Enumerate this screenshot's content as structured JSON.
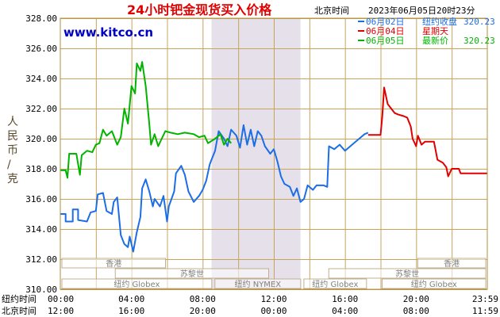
{
  "colors": {
    "border": "#b08c3c",
    "grid": "#c8a45a",
    "shade": "#e6e0ea",
    "title": "#e00000",
    "site": "#0000c0",
    "blue_series": "#1c6ee6",
    "red_series": "#e00000",
    "green_series": "#00b400"
  },
  "chart_data": {
    "type": "line",
    "title": "24小时钯金现货买入价格",
    "location": "北京时间",
    "timestamp": "2023年06月05日20时23分",
    "site": "www.kitco.cn",
    "ylabel": "人民币/克",
    "ylim": [
      310,
      328
    ],
    "y_ticks": [
      "310.00",
      "312.00",
      "314.00",
      "316.00",
      "318.00",
      "320.00",
      "322.00",
      "324.00",
      "326.00",
      "328.00"
    ],
    "xlim": [
      0,
      24
    ],
    "x_rows": [
      {
        "name": "纽约时间",
        "ticks": [
          "00:00",
          "04:00",
          "08:00",
          "12:00",
          "16:00",
          "20:00",
          "23:59"
        ]
      },
      {
        "name": "北京时间",
        "ticks": [
          "12:00",
          "16:00",
          "20:00",
          "00:00",
          "04:00",
          "08:00",
          "11:59"
        ]
      }
    ],
    "shaded_hours": [
      8.5,
      13.5
    ],
    "legend": [
      {
        "date": "06月02日",
        "label": "纽约收盘",
        "value": "320.23",
        "color": "#1c6ee6"
      },
      {
        "date": "06月04日",
        "label": "星期天",
        "value": "",
        "color": "#e00000"
      },
      {
        "date": "06月05日",
        "label": "最新价",
        "value": "320.23",
        "color": "#00b400"
      }
    ],
    "sessions": [
      {
        "label": "香港",
        "row": 0,
        "start": 0,
        "end": 6
      },
      {
        "label": "苏黎世",
        "row": 1,
        "start": 3,
        "end": 11.8
      },
      {
        "label": "纽约 Globex",
        "row": 2,
        "start": 0,
        "end": 8.6
      },
      {
        "label": "纽约 NYMEX",
        "row": 2,
        "start": 8.6,
        "end": 13.6
      },
      {
        "label": "纽约 Globex",
        "row": 2,
        "start": 13.6,
        "end": 17.3
      },
      {
        "label": "香港",
        "row": 0,
        "start": 20,
        "end": 24
      },
      {
        "label": "苏黎世",
        "row": 1,
        "start": 15,
        "end": 24
      },
      {
        "label": "纽约 Globex",
        "row": 2,
        "start": 18,
        "end": 24
      }
    ],
    "series": [
      {
        "date": "06月02日",
        "color": "#1c6ee6",
        "points": [
          [
            0,
            315
          ],
          [
            0.3,
            315
          ],
          [
            0.3,
            314.5
          ],
          [
            0.7,
            314.5
          ],
          [
            0.7,
            315.3
          ],
          [
            1.0,
            315.3
          ],
          [
            1.0,
            314.6
          ],
          [
            1.5,
            314.5
          ],
          [
            1.7,
            315.1
          ],
          [
            2.0,
            315.2
          ],
          [
            2.1,
            316.3
          ],
          [
            2.4,
            316.4
          ],
          [
            2.6,
            315.2
          ],
          [
            2.9,
            315.0
          ],
          [
            3.0,
            315.8
          ],
          [
            3.2,
            316.1
          ],
          [
            3.4,
            313.6
          ],
          [
            3.6,
            313.0
          ],
          [
            3.8,
            312.8
          ],
          [
            3.9,
            313.5
          ],
          [
            4.1,
            312.5
          ],
          [
            4.3,
            313.8
          ],
          [
            4.5,
            314.8
          ],
          [
            4.6,
            316.7
          ],
          [
            4.8,
            317.3
          ],
          [
            5.0,
            316.5
          ],
          [
            5.2,
            315.5
          ],
          [
            5.3,
            316.0
          ],
          [
            5.6,
            315.5
          ],
          [
            5.8,
            316.2
          ],
          [
            6.0,
            314.5
          ],
          [
            6.1,
            315.5
          ],
          [
            6.4,
            316.5
          ],
          [
            6.5,
            317.7
          ],
          [
            6.8,
            318.2
          ],
          [
            7.0,
            317.6
          ],
          [
            7.2,
            316.5
          ],
          [
            7.5,
            315.8
          ],
          [
            7.8,
            316.2
          ],
          [
            8.0,
            316.6
          ],
          [
            8.2,
            317.2
          ],
          [
            8.4,
            318.3
          ],
          [
            8.5,
            318.6
          ],
          [
            8.7,
            319.2
          ],
          [
            8.9,
            320.5
          ],
          [
            9.2,
            320.0
          ],
          [
            9.4,
            319.5
          ],
          [
            9.6,
            320.6
          ],
          [
            9.9,
            320.2
          ],
          [
            10.1,
            319.4
          ],
          [
            10.3,
            320.9
          ],
          [
            10.5,
            319.6
          ],
          [
            10.7,
            320.6
          ],
          [
            10.9,
            319.5
          ],
          [
            11.1,
            320.5
          ],
          [
            11.3,
            320.2
          ],
          [
            11.5,
            319.5
          ],
          [
            11.8,
            319.0
          ],
          [
            12.0,
            319.3
          ],
          [
            12.2,
            318.5
          ],
          [
            12.4,
            317.5
          ],
          [
            12.6,
            317.0
          ],
          [
            12.9,
            316.8
          ],
          [
            13.1,
            316.2
          ],
          [
            13.3,
            316.7
          ],
          [
            13.5,
            315.8
          ],
          [
            13.7,
            316.0
          ],
          [
            13.9,
            316.9
          ],
          [
            14.2,
            316.6
          ],
          [
            14.4,
            316.9
          ],
          [
            14.8,
            316.9
          ],
          [
            15.0,
            316.8
          ],
          [
            15.1,
            319.5
          ],
          [
            15.4,
            319.3
          ],
          [
            15.7,
            319.6
          ],
          [
            16.0,
            319.2
          ],
          [
            16.3,
            319.5
          ],
          [
            16.6,
            319.8
          ],
          [
            16.9,
            320.1
          ],
          [
            17.1,
            320.3
          ],
          [
            17.3,
            320.4
          ]
        ]
      },
      {
        "date": "06月04日",
        "color": "#e00000",
        "points": [
          [
            17.3,
            320.25
          ],
          [
            18.0,
            320.25
          ],
          [
            18.1,
            321.5
          ],
          [
            18.2,
            323.4
          ],
          [
            18.4,
            322.3
          ],
          [
            18.6,
            322.0
          ],
          [
            18.8,
            321.7
          ],
          [
            19.0,
            321.6
          ],
          [
            19.3,
            321.5
          ],
          [
            19.5,
            321.4
          ],
          [
            19.7,
            320.8
          ],
          [
            19.8,
            320.0
          ],
          [
            20.0,
            319.5
          ],
          [
            20.1,
            320.2
          ],
          [
            20.3,
            319.6
          ],
          [
            20.5,
            319.8
          ],
          [
            21.0,
            319.8
          ],
          [
            21.2,
            318.6
          ],
          [
            21.5,
            318.4
          ],
          [
            21.7,
            318.1
          ],
          [
            21.8,
            317.5
          ],
          [
            22.0,
            318.0
          ],
          [
            22.4,
            318.0
          ],
          [
            22.5,
            317.7
          ],
          [
            23.0,
            317.7
          ],
          [
            24.0,
            317.7
          ]
        ]
      },
      {
        "date": "06月05日",
        "color": "#00b400",
        "points": [
          [
            0,
            317.9
          ],
          [
            0.3,
            317.9
          ],
          [
            0.4,
            317.4
          ],
          [
            0.5,
            319.0
          ],
          [
            0.9,
            319.0
          ],
          [
            1.1,
            317.6
          ],
          [
            1.2,
            318.9
          ],
          [
            1.5,
            319.2
          ],
          [
            1.8,
            319.1
          ],
          [
            2.0,
            319.6
          ],
          [
            2.2,
            319.7
          ],
          [
            2.4,
            320.6
          ],
          [
            2.6,
            320.2
          ],
          [
            2.9,
            320.5
          ],
          [
            3.2,
            319.6
          ],
          [
            3.4,
            320.1
          ],
          [
            3.6,
            322.0
          ],
          [
            3.8,
            321.0
          ],
          [
            4.0,
            323.5
          ],
          [
            4.2,
            323.0
          ],
          [
            4.3,
            325.0
          ],
          [
            4.5,
            324.5
          ],
          [
            4.6,
            325.1
          ],
          [
            4.8,
            323.5
          ],
          [
            5.0,
            321.0
          ],
          [
            5.1,
            319.6
          ],
          [
            5.3,
            320.3
          ],
          [
            5.5,
            319.5
          ],
          [
            5.7,
            320.0
          ],
          [
            5.9,
            320.5
          ],
          [
            6.2,
            320.4
          ],
          [
            6.6,
            320.3
          ],
          [
            7.0,
            320.4
          ],
          [
            7.5,
            320.3
          ],
          [
            7.8,
            320.1
          ],
          [
            8.1,
            320.2
          ],
          [
            8.3,
            319.7
          ],
          [
            8.7,
            320.0
          ],
          [
            9.0,
            320.3
          ],
          [
            9.2,
            319.6
          ],
          [
            9.4,
            320.0
          ],
          [
            9.6,
            319.7
          ]
        ]
      }
    ]
  }
}
